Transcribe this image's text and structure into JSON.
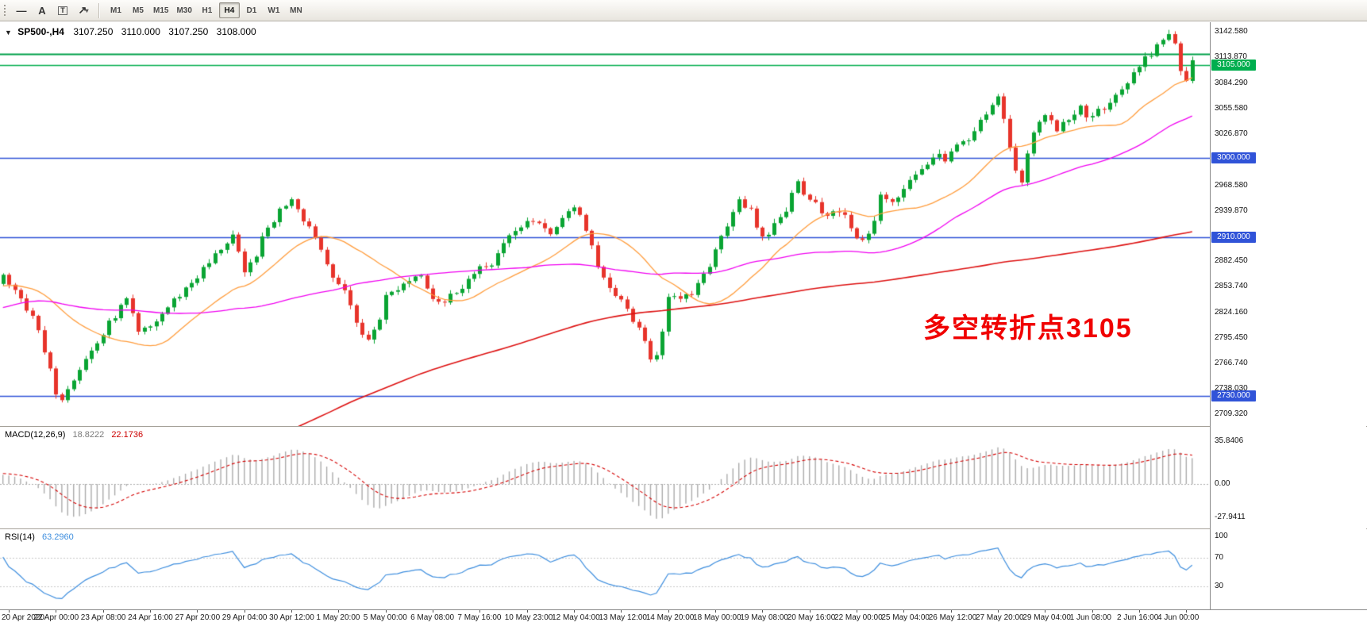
{
  "toolbar": {
    "tools": [
      {
        "name": "horizontal-line-tool",
        "glyph": "―"
      },
      {
        "name": "text-tool",
        "glyph": "A"
      },
      {
        "name": "label-tool",
        "glyph": "T",
        "boxed": true
      },
      {
        "name": "arrows-tool",
        "glyph": "↗",
        "caret": "▾"
      }
    ],
    "timeframes": [
      "M1",
      "M5",
      "M15",
      "M30",
      "H1",
      "H4",
      "D1",
      "W1",
      "MN"
    ],
    "active_timeframe": "H4"
  },
  "chart_header": {
    "dropdown_glyph": "▼",
    "symbol_period": "SP500-,H4",
    "open": "3107.250",
    "high": "3110.000",
    "low": "3107.250",
    "close": "3108.000"
  },
  "annotation": {
    "text": "多空转折点3105",
    "color": "#F00000"
  },
  "price_axis": {
    "labels": [
      {
        "v": 3142.58,
        "t": "3142.580"
      },
      {
        "v": 3113.87,
        "t": "3113.870"
      },
      {
        "v": 3084.29,
        "t": "3084.290"
      },
      {
        "v": 3055.58,
        "t": "3055.580"
      },
      {
        "v": 3026.87,
        "t": "3026.870"
      },
      {
        "v": 2968.58,
        "t": "2968.580"
      },
      {
        "v": 2939.87,
        "t": "2939.870"
      },
      {
        "v": 2882.45,
        "t": "2882.450"
      },
      {
        "v": 2853.74,
        "t": "2853.740"
      },
      {
        "v": 2824.16,
        "t": "2824.160"
      },
      {
        "v": 2795.45,
        "t": "2795.450"
      },
      {
        "v": 2766.74,
        "t": "2766.740"
      },
      {
        "v": 2738.03,
        "t": "2738.030"
      },
      {
        "v": 2709.32,
        "t": "2709.320"
      }
    ],
    "badges": [
      {
        "v": 3105.0,
        "t": "3105.000",
        "bg": "#00AE4E"
      },
      {
        "v": 3000.0,
        "t": "3000.000",
        "bg": "#3053D8"
      },
      {
        "v": 2910.0,
        "t": "2910.000",
        "bg": "#3053D8"
      },
      {
        "v": 2730.0,
        "t": "2730.000",
        "bg": "#3053D8"
      }
    ]
  },
  "hlines": [
    {
      "price": 3117.0,
      "color": "#00A04A",
      "width": 2
    },
    {
      "price": 3105.0,
      "color": "#00AE4E",
      "width": 1.5
    },
    {
      "price": 3000.0,
      "color": "#3053D8",
      "width": 1.5
    },
    {
      "price": 2910.0,
      "color": "#3053D8",
      "width": 1.5
    },
    {
      "price": 2730.0,
      "color": "#3053D8",
      "width": 1.5
    }
  ],
  "time_axis": {
    "first_bar": 1,
    "bar_step": 8,
    "labels": [
      "20 Apr 2020",
      "22 Apr 00:00",
      "23 Apr 08:00",
      "24 Apr 16:00",
      "27 Apr 20:00",
      "29 Apr 04:00",
      "30 Apr 12:00",
      "1 May 20:00",
      "5 May 00:00",
      "6 May 08:00",
      "7 May 16:00",
      "10 May 23:00",
      "12 May 04:00",
      "13 May 12:00",
      "14 May 20:00",
      "18 May 00:00",
      "19 May 08:00",
      "20 May 16:00",
      "22 May 00:00",
      "25 May 04:00",
      "26 May 12:00",
      "27 May 20:00",
      "29 May 04:00",
      "1 Jun 08:00",
      "2 Jun 16:00",
      "4 Jun 00:00"
    ]
  },
  "indicators": {
    "macd": {
      "name": "MACD(12,26,9)",
      "value_main": "18.8222",
      "value_signal": "22.1736",
      "axis": [
        {
          "v": 35.8406,
          "t": "35.8406"
        },
        {
          "v": 0,
          "t": "0.00"
        },
        {
          "v": -27.9411,
          "t": "-27.9411"
        }
      ],
      "histogram_color": "#ABABAB",
      "signal_color": "#D40000"
    },
    "rsi": {
      "name": "RSI(14)",
      "value": "63.2960",
      "line_color": "#3E8EDE",
      "axis": [
        {
          "v": 100,
          "t": "100"
        },
        {
          "v": 70,
          "t": "70"
        },
        {
          "v": 30,
          "t": "30"
        }
      ],
      "levels": [
        70,
        30
      ]
    }
  },
  "chart_data": {
    "type": "candlestick",
    "symbol": "SP500-",
    "period": "H4",
    "bars_visible": 203,
    "price_top": 3153.4,
    "price_bottom": 2695.9,
    "up_color": "#0AA433",
    "down_color": "#E7342B",
    "moving_averages": [
      {
        "period": 20,
        "color": "#FF9C3C"
      },
      {
        "period": 50,
        "color": "#F000F0"
      },
      {
        "period": 200,
        "color": "#DD1111"
      }
    ],
    "macd_params": [
      12,
      26,
      9
    ],
    "rsi_period": 14,
    "close_anchors": [
      [
        0,
        2866
      ],
      [
        2,
        2846
      ],
      [
        5,
        2823
      ],
      [
        7,
        2778
      ],
      [
        9,
        2736
      ],
      [
        10,
        2729
      ],
      [
        11,
        2742
      ],
      [
        13,
        2762
      ],
      [
        17,
        2800
      ],
      [
        19,
        2822
      ],
      [
        21,
        2838
      ],
      [
        23,
        2800
      ],
      [
        25,
        2808
      ],
      [
        29,
        2838
      ],
      [
        31,
        2852
      ],
      [
        35,
        2880
      ],
      [
        37,
        2898
      ],
      [
        39,
        2912
      ],
      [
        41,
        2866
      ],
      [
        43,
        2892
      ],
      [
        45,
        2920
      ],
      [
        47,
        2940
      ],
      [
        49,
        2956
      ],
      [
        51,
        2932
      ],
      [
        53,
        2912
      ],
      [
        55,
        2880
      ],
      [
        57,
        2858
      ],
      [
        59,
        2832
      ],
      [
        61,
        2800
      ],
      [
        62,
        2792
      ],
      [
        64,
        2820
      ],
      [
        65,
        2842
      ],
      [
        67,
        2852
      ],
      [
        69,
        2862
      ],
      [
        71,
        2870
      ],
      [
        73,
        2842
      ],
      [
        75,
        2836
      ],
      [
        77,
        2850
      ],
      [
        79,
        2862
      ],
      [
        81,
        2872
      ],
      [
        83,
        2882
      ],
      [
        85,
        2900
      ],
      [
        87,
        2916
      ],
      [
        89,
        2930
      ],
      [
        91,
        2922
      ],
      [
        93,
        2916
      ],
      [
        95,
        2932
      ],
      [
        97,
        2946
      ],
      [
        99,
        2920
      ],
      [
        100,
        2900
      ],
      [
        101,
        2872
      ],
      [
        103,
        2852
      ],
      [
        105,
        2836
      ],
      [
        107,
        2818
      ],
      [
        109,
        2788
      ],
      [
        110,
        2770
      ],
      [
        111,
        2780
      ],
      [
        112,
        2806
      ],
      [
        113,
        2846
      ],
      [
        115,
        2836
      ],
      [
        117,
        2846
      ],
      [
        119,
        2864
      ],
      [
        120,
        2880
      ],
      [
        122,
        2912
      ],
      [
        124,
        2940
      ],
      [
        125,
        2954
      ],
      [
        127,
        2938
      ],
      [
        128,
        2918
      ],
      [
        129,
        2906
      ],
      [
        131,
        2924
      ],
      [
        133,
        2942
      ],
      [
        135,
        2972
      ],
      [
        136,
        2962
      ],
      [
        138,
        2950
      ],
      [
        140,
        2932
      ],
      [
        142,
        2940
      ],
      [
        144,
        2922
      ],
      [
        146,
        2902
      ],
      [
        148,
        2932
      ],
      [
        149,
        2956
      ],
      [
        151,
        2948
      ],
      [
        153,
        2962
      ],
      [
        155,
        2982
      ],
      [
        157,
        2995
      ],
      [
        159,
        3006
      ],
      [
        160,
        2998
      ],
      [
        162,
        3012
      ],
      [
        164,
        3024
      ],
      [
        166,
        3038
      ],
      [
        168,
        3058
      ],
      [
        169,
        3066
      ],
      [
        170,
        3040
      ],
      [
        171,
        3010
      ],
      [
        172,
        2985
      ],
      [
        173,
        2968
      ],
      [
        174,
        3000
      ],
      [
        175,
        3030
      ],
      [
        177,
        3046
      ],
      [
        179,
        3034
      ],
      [
        181,
        3044
      ],
      [
        183,
        3056
      ],
      [
        184,
        3044
      ],
      [
        186,
        3052
      ],
      [
        188,
        3064
      ],
      [
        190,
        3080
      ],
      [
        192,
        3095
      ],
      [
        194,
        3110
      ],
      [
        196,
        3126
      ],
      [
        198,
        3138
      ],
      [
        199,
        3130
      ],
      [
        200,
        3096
      ],
      [
        201,
        3088
      ],
      [
        202,
        3108
      ]
    ],
    "prehistory_anchors": [
      [
        -200,
        3090
      ],
      [
        -192,
        2980
      ],
      [
        -184,
        2860
      ],
      [
        -176,
        2700
      ],
      [
        -168,
        2560
      ],
      [
        -160,
        2480
      ],
      [
        -152,
        2380
      ],
      [
        -146,
        2280
      ],
      [
        -142,
        2200
      ],
      [
        -138,
        2260
      ],
      [
        -132,
        2320
      ],
      [
        -126,
        2400
      ],
      [
        -120,
        2480
      ],
      [
        -114,
        2520
      ],
      [
        -108,
        2480
      ],
      [
        -102,
        2540
      ],
      [
        -96,
        2600
      ],
      [
        -90,
        2650
      ],
      [
        -84,
        2700
      ],
      [
        -78,
        2740
      ],
      [
        -72,
        2690
      ],
      [
        -66,
        2730
      ],
      [
        -60,
        2770
      ],
      [
        -54,
        2800
      ],
      [
        -48,
        2760
      ],
      [
        -42,
        2790
      ],
      [
        -36,
        2820
      ],
      [
        -30,
        2830
      ],
      [
        -24,
        2845
      ],
      [
        -18,
        2852
      ],
      [
        -12,
        2858
      ],
      [
        -6,
        2846
      ],
      [
        -1,
        2858
      ]
    ]
  }
}
